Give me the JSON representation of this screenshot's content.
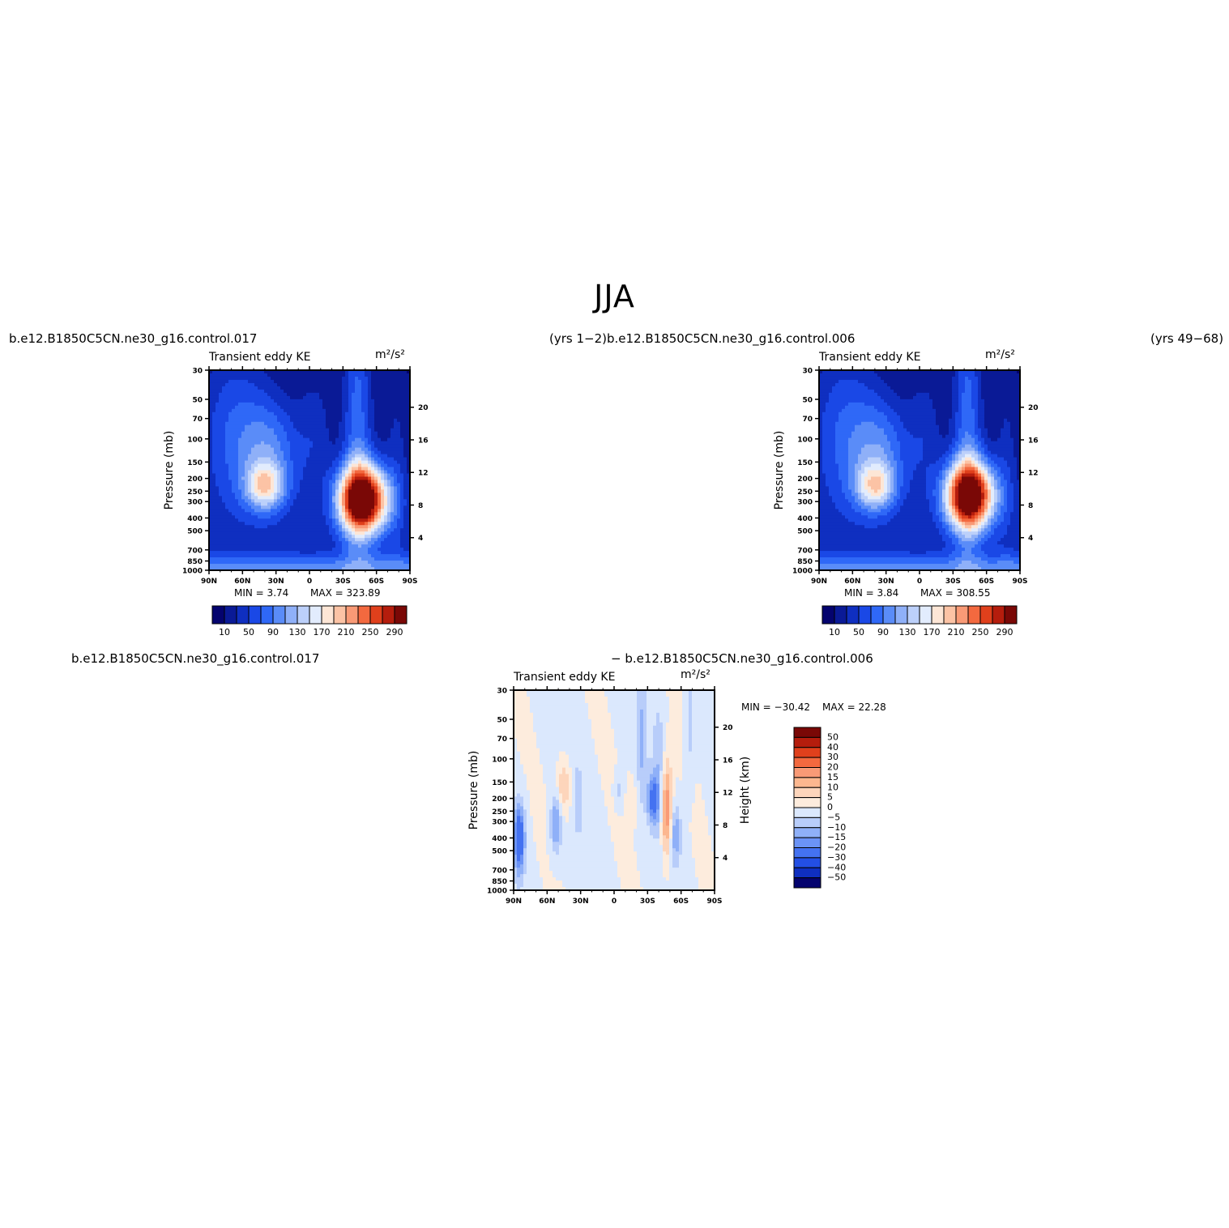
{
  "title": "JJA",
  "top_left_case": "b.e12.B1850C5CN.ne30_g16.control.017",
  "top_middle_label": "(yrs 1−2)b.e12.B1850C5CN.ne30_g16.control.006",
  "top_right_label": "(yrs 49−68)",
  "bottom_left_case": "b.e12.B1850C5CN.ne30_g16.control.017",
  "bottom_middle_label": "− b.e12.B1850C5CN.ne30_g16.control.006",
  "chart_data": [
    {
      "type": "heatmap",
      "panel": "control.017",
      "title": "Transient eddy KE",
      "units": "m²/s²",
      "ylabel": "Pressure (mb)",
      "y2label": "Height (km)",
      "x_ticks": [
        "90N",
        "60N",
        "30N",
        "0",
        "30S",
        "60S",
        "90S"
      ],
      "y_ticks": [
        30,
        50,
        70,
        100,
        150,
        200,
        250,
        300,
        400,
        500,
        700,
        850,
        1000
      ],
      "height_ticks": [
        4,
        8,
        12,
        16,
        20
      ],
      "min": 3.74,
      "max": 323.89,
      "min_label": "MIN =    3.74",
      "max_label": "MAX = 323.89",
      "contour_levels": [
        10,
        30,
        50,
        70,
        90,
        110,
        130,
        150,
        170,
        190,
        210,
        230,
        250,
        270,
        290
      ],
      "colorbar_labels": [
        "10",
        "50",
        "90",
        "130",
        "170",
        "210",
        "250",
        "290"
      ],
      "maxima": [
        {
          "lat": 40,
          "pressure": 230,
          "value": 200
        },
        {
          "lat": -48,
          "pressure": 290,
          "value": 323.89
        }
      ]
    },
    {
      "type": "heatmap",
      "panel": "control.006",
      "title": "Transient eddy KE",
      "units": "m²/s²",
      "ylabel": "Pressure (mb)",
      "y2label": "Height (km)",
      "x_ticks": [
        "90N",
        "60N",
        "30N",
        "0",
        "30S",
        "60S",
        "90S"
      ],
      "y_ticks": [
        30,
        50,
        70,
        100,
        150,
        200,
        250,
        300,
        400,
        500,
        700,
        850,
        1000
      ],
      "height_ticks": [
        4,
        8,
        12,
        16,
        20
      ],
      "min": 3.84,
      "max": 308.55,
      "min_label": "MIN =    3.84",
      "max_label": "MAX = 308.55",
      "contour_levels": [
        10,
        30,
        50,
        70,
        90,
        110,
        130,
        150,
        170,
        190,
        210,
        230,
        250,
        270,
        290
      ],
      "colorbar_labels": [
        "10",
        "50",
        "90",
        "130",
        "170",
        "210",
        "250",
        "290"
      ],
      "maxima": [
        {
          "lat": 40,
          "pressure": 230,
          "value": 190
        },
        {
          "lat": -45,
          "pressure": 270,
          "value": 308.55
        }
      ]
    },
    {
      "type": "heatmap",
      "panel": "difference",
      "title": "Transient eddy KE",
      "units": "m²/s²",
      "ylabel": "Pressure (mb)",
      "y2label": "Height (km)",
      "x_ticks": [
        "90N",
        "60N",
        "30N",
        "0",
        "30S",
        "60S",
        "90S"
      ],
      "y_ticks": [
        30,
        50,
        70,
        100,
        150,
        200,
        250,
        300,
        400,
        500,
        700,
        850,
        1000
      ],
      "height_ticks": [
        4,
        8,
        12,
        16,
        20
      ],
      "min": -30.42,
      "max": 22.28,
      "min_label": "MIN = −30.42",
      "max_label": "MAX =   22.28",
      "contour_levels": [
        50,
        40,
        30,
        20,
        15,
        10,
        5,
        0,
        -5,
        -10,
        -15,
        -20,
        -30,
        -40,
        -50
      ],
      "colorbar_labels": [
        "50",
        "40",
        "30",
        "20",
        "15",
        "10",
        "5",
        "0",
        "−5",
        "−10",
        "−15",
        "−20",
        "−30",
        "−40",
        "−50"
      ]
    }
  ]
}
